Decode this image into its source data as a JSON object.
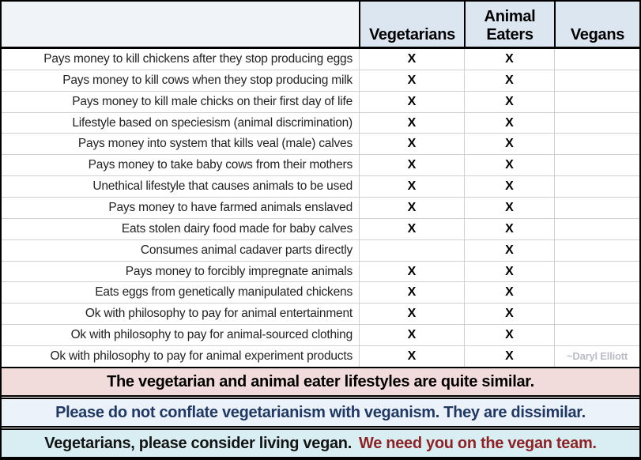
{
  "header": {
    "columns": [
      "Vegetarians",
      "Animal Eaters",
      "Vegans"
    ]
  },
  "rows": [
    {
      "label": "Pays money to kill chickens after they stop producing eggs",
      "vegetarians": "X",
      "animal_eaters": "X",
      "vegans": ""
    },
    {
      "label": "Pays money to kill cows when they stop producing milk",
      "vegetarians": "X",
      "animal_eaters": "X",
      "vegans": ""
    },
    {
      "label": "Pays money to kill male chicks on their first day of life",
      "vegetarians": "X",
      "animal_eaters": "X",
      "vegans": ""
    },
    {
      "label": "Lifestyle based on speciesism (animal discrimination)",
      "vegetarians": "X",
      "animal_eaters": "X",
      "vegans": ""
    },
    {
      "label": "Pays money into system that kills veal (male) calves",
      "vegetarians": "X",
      "animal_eaters": "X",
      "vegans": ""
    },
    {
      "label": "Pays money to take baby cows from their mothers",
      "vegetarians": "X",
      "animal_eaters": "X",
      "vegans": ""
    },
    {
      "label": "Unethical lifestyle that causes animals to be used",
      "vegetarians": "X",
      "animal_eaters": "X",
      "vegans": ""
    },
    {
      "label": "Pays money to have farmed animals enslaved",
      "vegetarians": "X",
      "animal_eaters": "X",
      "vegans": ""
    },
    {
      "label": "Eats stolen dairy food made for baby calves",
      "vegetarians": "X",
      "animal_eaters": "X",
      "vegans": ""
    },
    {
      "label": "Consumes animal cadaver parts directly",
      "vegetarians": "",
      "animal_eaters": "X",
      "vegans": ""
    },
    {
      "label": "Pays money to forcibly impregnate animals",
      "vegetarians": "X",
      "animal_eaters": "X",
      "vegans": ""
    },
    {
      "label": "Eats eggs from genetically manipulated chickens",
      "vegetarians": "X",
      "animal_eaters": "X",
      "vegans": ""
    },
    {
      "label": "Ok with philosophy to pay for animal entertainment",
      "vegetarians": "X",
      "animal_eaters": "X",
      "vegans": ""
    },
    {
      "label": "Ok with philosophy to pay for animal-sourced clothing",
      "vegetarians": "X",
      "animal_eaters": "X",
      "vegans": ""
    },
    {
      "label": "Ok with philosophy to pay for animal experiment products",
      "vegetarians": "X",
      "animal_eaters": "X",
      "vegans": "~Daryl Elliott"
    }
  ],
  "banners": [
    {
      "text": "The vegetarian and animal eater lifestyles are quite similar."
    },
    {
      "text": "Please do not conflate vegetarianism with veganism. They are dissimilar."
    },
    {
      "text_primary": "Vegetarians, please consider living vegan.",
      "text_accent": "We need you on the vegan team."
    }
  ],
  "colors": {
    "header_fill": "#dce6f1",
    "corner_fill": "#f0f3f7",
    "grid_line": "#d0d0d0",
    "border_black": "#000000",
    "banner1_bg": "#f2dcdb",
    "banner1_text": "#000000",
    "banner2_bg": "#ebf2f9",
    "banner2_text": "#1f3864",
    "banner3_bg": "#d9eef3",
    "banner3_text": "#141414",
    "banner3_accent": "#8e2326",
    "attribution_text": "#b9bdc7",
    "mark_text": "#000000",
    "label_text": "#232323"
  }
}
